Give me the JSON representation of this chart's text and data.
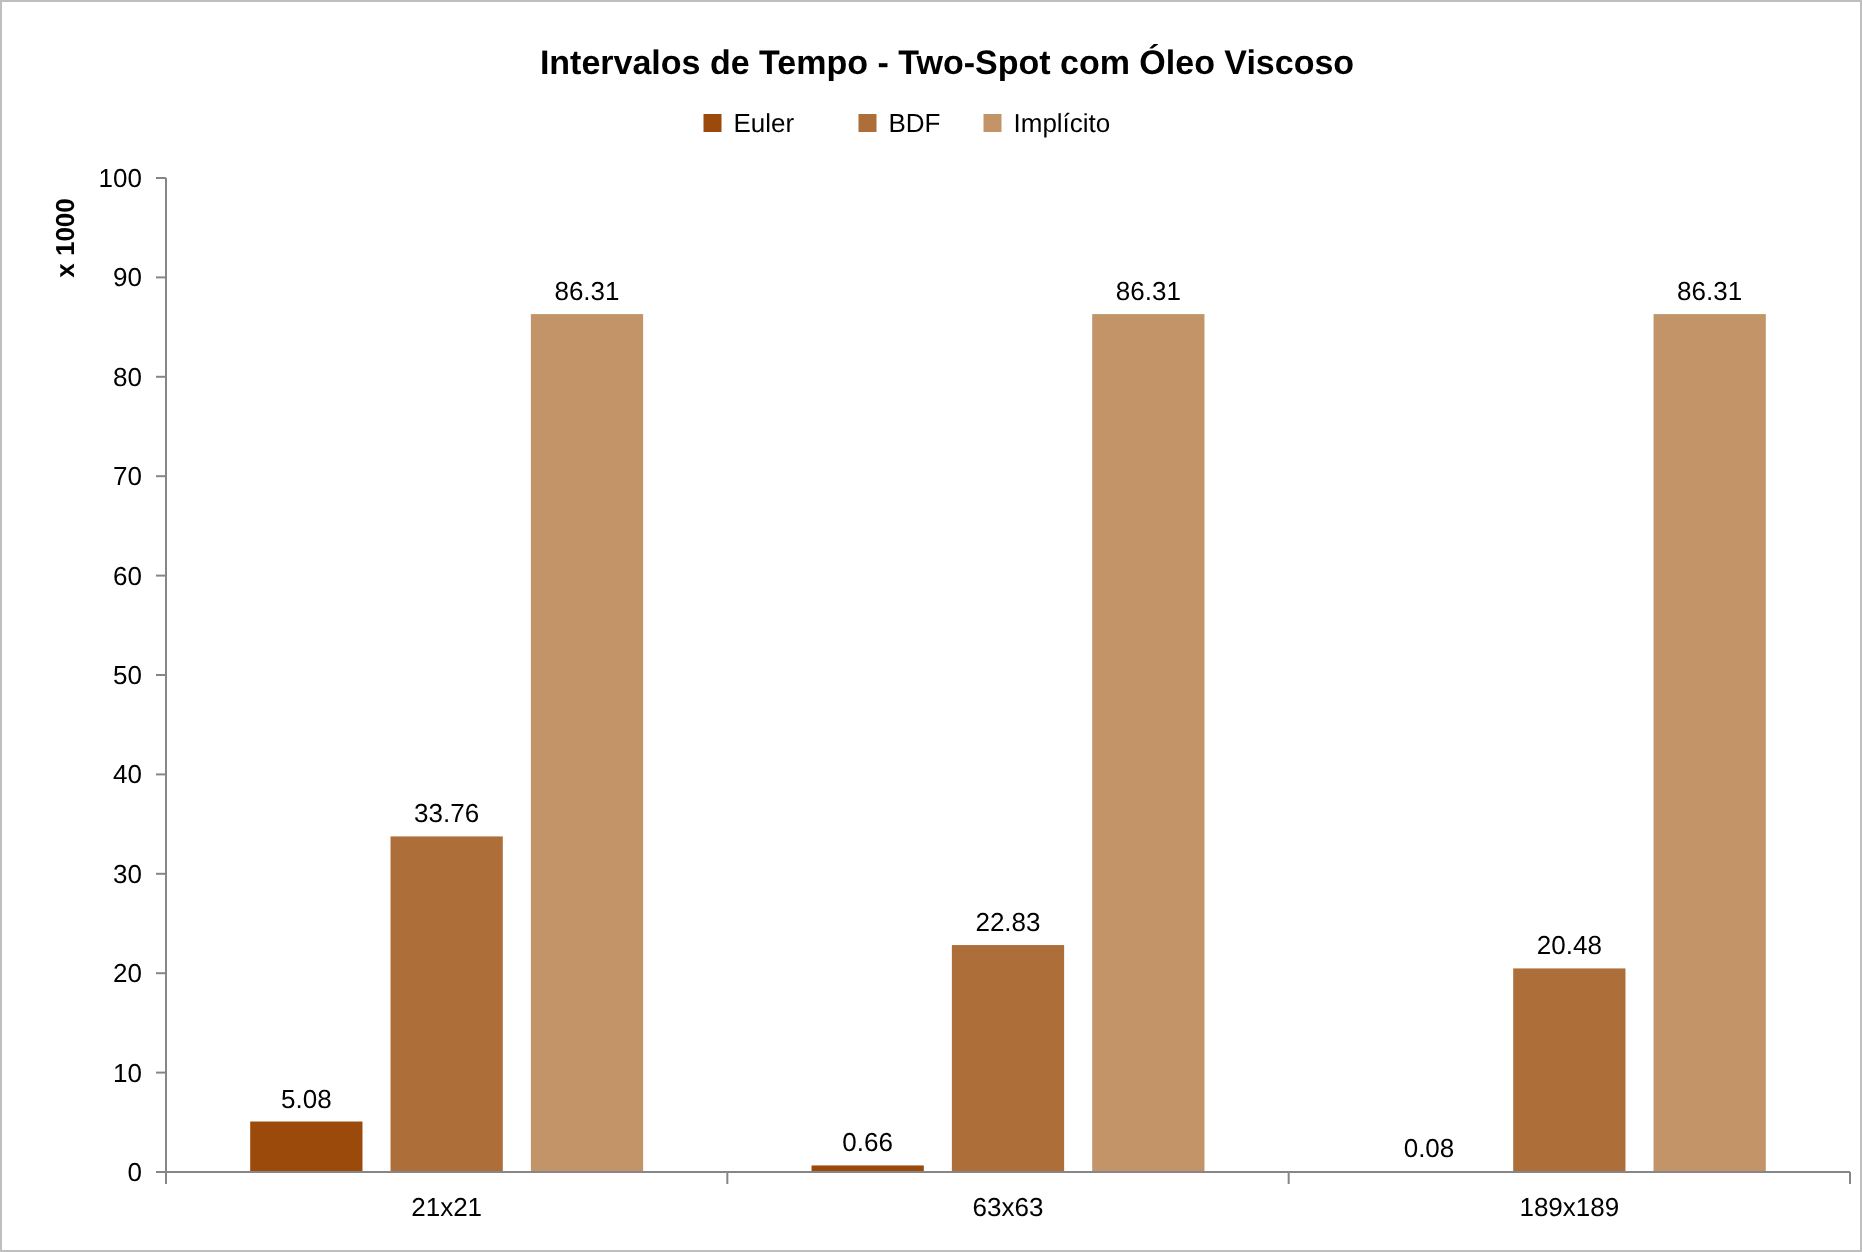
{
  "chart_data": {
    "type": "bar",
    "title": "Intervalos de Tempo - Two-Spot com Óleo Viscoso",
    "ylabel": "x 1000",
    "categories": [
      "21x21",
      "63x63",
      "189x189"
    ],
    "series": [
      {
        "name": "Euler",
        "color": "#9c4a0c",
        "values": [
          5.08,
          0.66,
          0.08
        ]
      },
      {
        "name": "BDF",
        "color": "#ae6e3a",
        "values": [
          33.76,
          22.83,
          20.48
        ]
      },
      {
        "name": "Implícito",
        "color": "#c49469",
        "values": [
          86.31,
          86.31,
          86.31
        ]
      }
    ],
    "ylim": [
      0,
      100
    ],
    "yticks": [
      0,
      10,
      20,
      30,
      40,
      50,
      60,
      70,
      80,
      90,
      100
    ],
    "data_labels": true,
    "legend": "top",
    "grid": false
  }
}
